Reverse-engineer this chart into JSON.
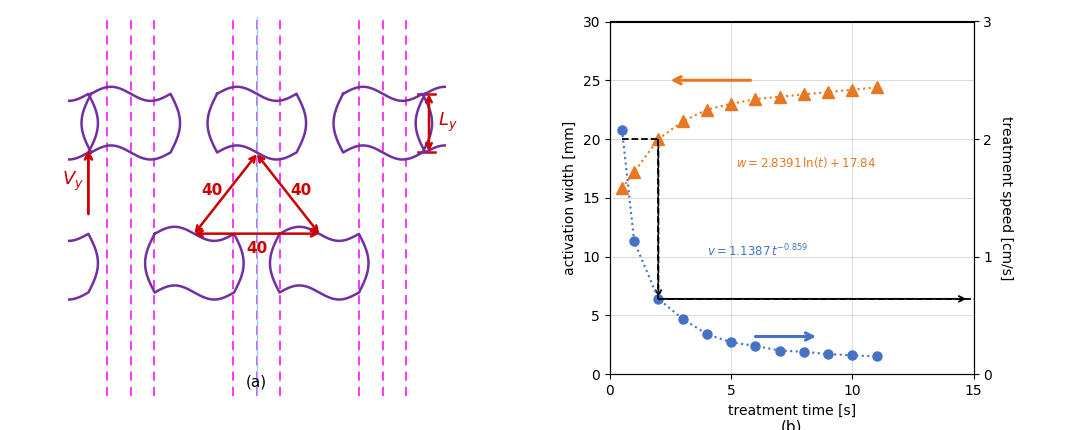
{
  "panel_b": {
    "blue_x": [
      0.5,
      1.0,
      2.0,
      3.0,
      4.0,
      5.0,
      6.0,
      7.0,
      8.0,
      9.0,
      10.0,
      11.0
    ],
    "blue_y": [
      20.8,
      11.3,
      6.4,
      4.7,
      3.4,
      2.7,
      2.4,
      2.0,
      1.9,
      1.7,
      1.6,
      1.5
    ],
    "orange_x": [
      0.5,
      1.0,
      2.0,
      3.0,
      4.0,
      5.0,
      6.0,
      7.0,
      8.0,
      9.0,
      10.0,
      11.0
    ],
    "orange_y": [
      15.8,
      17.2,
      20.0,
      21.5,
      22.5,
      23.0,
      23.4,
      23.6,
      23.8,
      24.0,
      24.2,
      24.4
    ],
    "blue_color": "#4472C4",
    "orange_color": "#E87722",
    "xlim": [
      0,
      15
    ],
    "ylim_left": [
      0,
      30
    ],
    "ylim_right": [
      0,
      3
    ],
    "xlabel": "treatment time [s]",
    "ylabel_left": "activation width [mm]",
    "ylabel_right": "treatment speed [cm/s]",
    "panel_a_label": "(a)",
    "panel_b_label": "(b)"
  }
}
